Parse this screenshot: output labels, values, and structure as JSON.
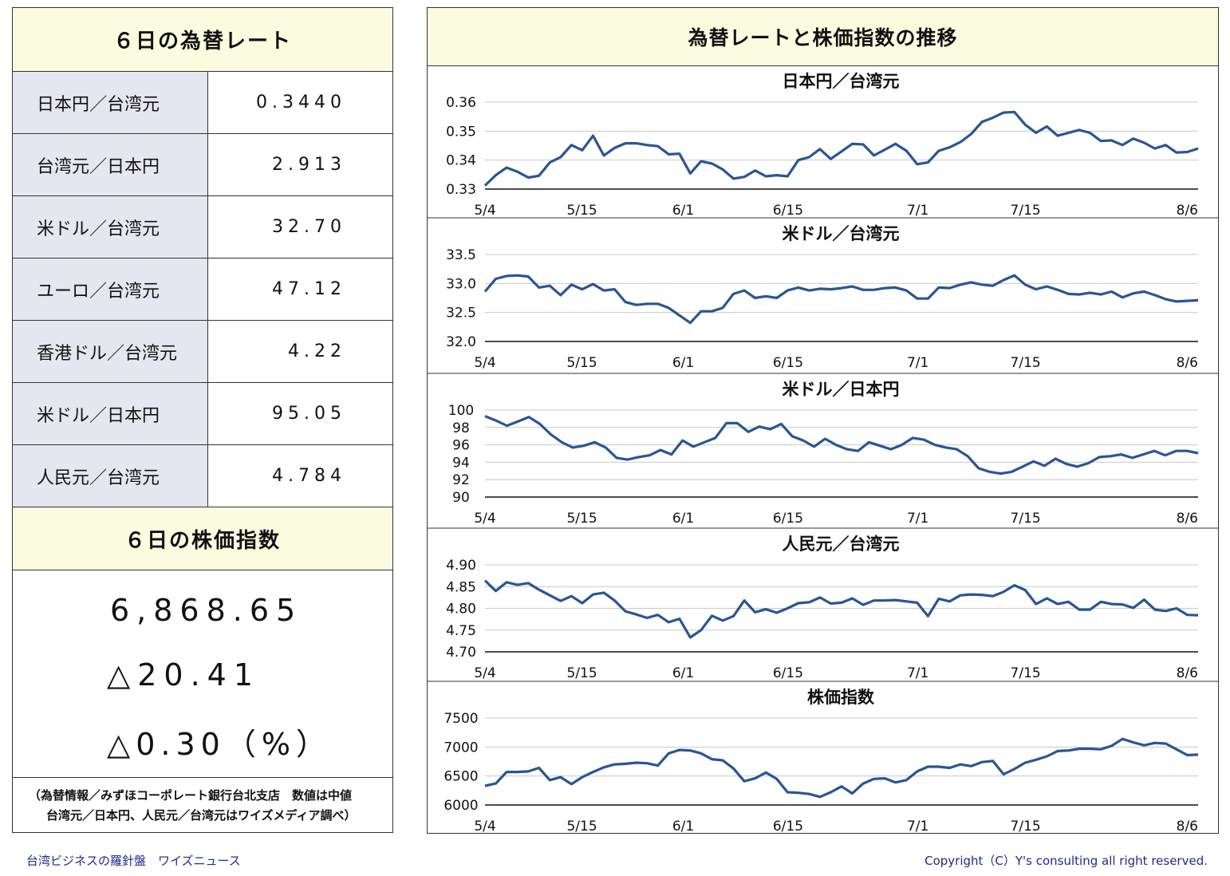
{
  "left": {
    "rates_title": "６日の為替レート",
    "rates": [
      {
        "label": "日本円／台湾元",
        "value": "0.3440"
      },
      {
        "label": "台湾元／日本円",
        "value": "2.913"
      },
      {
        "label": "米ドル／台湾元",
        "value": "32.70"
      },
      {
        "label": "ユーロ／台湾元",
        "value": "47.12"
      },
      {
        "label": "香港ドル／台湾元",
        "value": "4.22"
      },
      {
        "label": "米ドル／日本円",
        "value": "95.05"
      },
      {
        "label": "人民元／台湾元",
        "value": "4.784"
      }
    ],
    "stock_title": "６日の株価指数",
    "stock_value": "6,868.65",
    "stock_change": "△20.41",
    "stock_change_pct": "△0.30（%）",
    "note_line1": "（為替情報／みずほコーポレート銀行台北支店　数値は中値",
    "note_line2": "台湾元／日本円、人民元／台湾元はワイズメディア調べ）"
  },
  "right_title": "為替レートと株価指数の推移",
  "footer": {
    "left": "台湾ビジネスの羅針盤　ワイズニュース",
    "right": "Copyright（C）Y's consulting all right reserved."
  },
  "chart_data": [
    {
      "type": "line",
      "title": "日本円／台湾元",
      "x_ticks": [
        "5/4",
        "5/15",
        "6/1",
        "6/15",
        "7/1",
        "7/15",
        "8/6"
      ],
      "y_ticks": [
        "0.33",
        "0.34",
        "0.35",
        "0.36"
      ],
      "ylim": [
        0.33,
        0.36
      ],
      "color": "#2a5595",
      "values": [
        0.3312,
        0.3348,
        0.3374,
        0.336,
        0.334,
        0.3346,
        0.3392,
        0.341,
        0.3452,
        0.3434,
        0.3484,
        0.3416,
        0.3442,
        0.3458,
        0.3458,
        0.3452,
        0.3448,
        0.342,
        0.3422,
        0.3354,
        0.3396,
        0.3388,
        0.3368,
        0.3336,
        0.3342,
        0.3364,
        0.3344,
        0.3348,
        0.3344,
        0.34,
        0.341,
        0.3438,
        0.3404,
        0.343,
        0.3456,
        0.3454,
        0.3416,
        0.3436,
        0.3456,
        0.3432,
        0.3386,
        0.3392,
        0.3432,
        0.3444,
        0.3462,
        0.349,
        0.3532,
        0.3546,
        0.3564,
        0.3566,
        0.3522,
        0.3494,
        0.3516,
        0.3484,
        0.3494,
        0.3504,
        0.3494,
        0.3466,
        0.3468,
        0.3452,
        0.3474,
        0.346,
        0.344,
        0.3452,
        0.3426,
        0.3428,
        0.344
      ]
    },
    {
      "type": "line",
      "title": "米ドル／台湾元",
      "x_ticks": [
        "5/4",
        "5/15",
        "6/1",
        "6/15",
        "7/1",
        "7/15",
        "8/6"
      ],
      "y_ticks": [
        "32.0",
        "32.5",
        "33.0",
        "33.5"
      ],
      "ylim": [
        32.0,
        33.5
      ],
      "color": "#2a5595",
      "values": [
        32.86,
        33.08,
        33.13,
        33.14,
        33.12,
        32.93,
        32.96,
        32.8,
        32.98,
        32.9,
        32.99,
        32.88,
        32.9,
        32.68,
        32.63,
        32.65,
        32.65,
        32.58,
        32.45,
        32.32,
        32.52,
        32.52,
        32.58,
        32.82,
        32.88,
        32.75,
        32.78,
        32.75,
        32.88,
        32.93,
        32.88,
        32.91,
        32.9,
        32.92,
        32.95,
        32.89,
        32.89,
        32.92,
        32.93,
        32.88,
        32.74,
        32.74,
        32.93,
        32.92,
        32.98,
        33.02,
        32.98,
        32.96,
        33.06,
        33.14,
        32.98,
        32.9,
        32.95,
        32.89,
        32.82,
        32.81,
        32.84,
        32.81,
        32.86,
        32.76,
        32.83,
        32.86,
        32.8,
        32.73,
        32.69,
        32.7,
        32.71
      ]
    },
    {
      "type": "line",
      "title": "米ドル／日本円",
      "x_ticks": [
        "5/4",
        "5/15",
        "6/1",
        "6/15",
        "7/1",
        "7/15",
        "8/6"
      ],
      "y_ticks": [
        "90",
        "92",
        "94",
        "96",
        "98",
        "100"
      ],
      "ylim": [
        90,
        100
      ],
      "color": "#2a5595",
      "values": [
        99.3,
        98.8,
        98.2,
        98.7,
        99.2,
        98.4,
        97.2,
        96.3,
        95.7,
        95.9,
        96.3,
        95.7,
        94.5,
        94.3,
        94.6,
        94.8,
        95.4,
        94.9,
        96.5,
        95.8,
        96.3,
        96.8,
        98.5,
        98.5,
        97.5,
        98.1,
        97.8,
        98.4,
        97.0,
        96.5,
        95.8,
        96.7,
        96.0,
        95.5,
        95.3,
        96.3,
        95.9,
        95.5,
        96.0,
        96.8,
        96.6,
        96.0,
        95.7,
        95.5,
        94.7,
        93.3,
        92.9,
        92.7,
        92.9,
        93.5,
        94.1,
        93.6,
        94.4,
        93.8,
        93.5,
        93.9,
        94.6,
        94.7,
        94.9,
        94.5,
        94.9,
        95.3,
        94.8,
        95.3,
        95.3,
        95.05
      ]
    },
    {
      "type": "line",
      "title": "人民元／台湾元",
      "x_ticks": [
        "5/4",
        "5/15",
        "6/1",
        "6/15",
        "7/1",
        "7/15",
        "8/6"
      ],
      "y_ticks": [
        "4.70",
        "4.75",
        "4.80",
        "4.85",
        "4.90"
      ],
      "ylim": [
        4.7,
        4.9
      ],
      "color": "#2a5595",
      "values": [
        4.864,
        4.84,
        4.86,
        4.854,
        4.858,
        4.843,
        4.83,
        4.817,
        4.828,
        4.812,
        4.832,
        4.836,
        4.818,
        4.793,
        4.786,
        4.778,
        4.785,
        4.768,
        4.776,
        4.733,
        4.75,
        4.783,
        4.772,
        4.782,
        4.818,
        4.791,
        4.798,
        4.79,
        4.8,
        4.812,
        4.814,
        4.825,
        4.811,
        4.813,
        4.823,
        4.808,
        4.818,
        4.818,
        4.819,
        4.816,
        4.813,
        4.782,
        4.822,
        4.816,
        4.83,
        4.832,
        4.831,
        4.828,
        4.838,
        4.853,
        4.842,
        4.81,
        4.823,
        4.81,
        4.815,
        4.797,
        4.797,
        4.815,
        4.81,
        4.809,
        4.801,
        4.82,
        4.797,
        4.794,
        4.8,
        4.785,
        4.784
      ]
    },
    {
      "type": "line",
      "title": "株価指数",
      "x_ticks": [
        "5/4",
        "5/15",
        "6/1",
        "6/15",
        "7/1",
        "7/15",
        "8/6"
      ],
      "y_ticks": [
        "6000",
        "6500",
        "7000",
        "7500"
      ],
      "ylim": [
        6000,
        7500
      ],
      "color": "#2a5595",
      "values": [
        6330,
        6370,
        6570,
        6570,
        6580,
        6640,
        6430,
        6480,
        6360,
        6480,
        6570,
        6650,
        6700,
        6710,
        6730,
        6720,
        6680,
        6890,
        6950,
        6940,
        6890,
        6790,
        6770,
        6630,
        6410,
        6460,
        6560,
        6450,
        6220,
        6210,
        6190,
        6140,
        6220,
        6320,
        6200,
        6370,
        6450,
        6460,
        6390,
        6430,
        6580,
        6660,
        6660,
        6640,
        6700,
        6670,
        6740,
        6760,
        6530,
        6620,
        6730,
        6780,
        6840,
        6930,
        6940,
        6970,
        6970,
        6960,
        7020,
        7140,
        7080,
        7030,
        7070,
        7060,
        6960,
        6860,
        6868
      ]
    }
  ]
}
